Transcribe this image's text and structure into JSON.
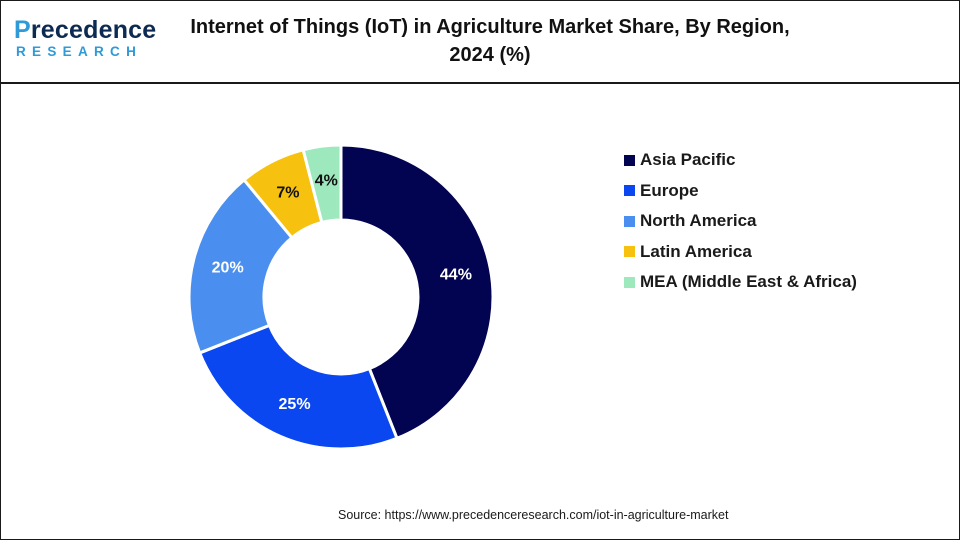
{
  "logo": {
    "text_accent": "P",
    "text_main": "recedence",
    "text_sub": "RESEARCH"
  },
  "title": {
    "line1": "Internet of Things (IoT) in Agriculture Market Share, By Region,",
    "line2": "2024 (%)"
  },
  "source": "Source: https://www.precedenceresearch.com/iot-in-agriculture-market",
  "colors": {
    "asia_pacific": "#020452",
    "europe": "#0a47f0",
    "north_america": "#4a8ff0",
    "latin_america": "#f7c10f",
    "mea": "#9de8bd"
  },
  "chart_data": {
    "type": "pie",
    "variant": "donut",
    "categories": [
      "Asia Pacific",
      "Europe",
      "North America",
      "Latin America",
      "MEA (Middle East & Africa)"
    ],
    "values": [
      44,
      25,
      20,
      7,
      4
    ],
    "data_labels": [
      "44%",
      "25%",
      "20%",
      "7%",
      "4%"
    ],
    "colors": [
      "#020452",
      "#0a47f0",
      "#4a8ff0",
      "#f7c10f",
      "#9de8bd"
    ],
    "label_colors": [
      "#ffffff",
      "#ffffff",
      "#ffffff",
      "#111111",
      "#111111"
    ],
    "legend_position": "right",
    "start_angle": "12 o'clock",
    "direction": "clockwise"
  }
}
